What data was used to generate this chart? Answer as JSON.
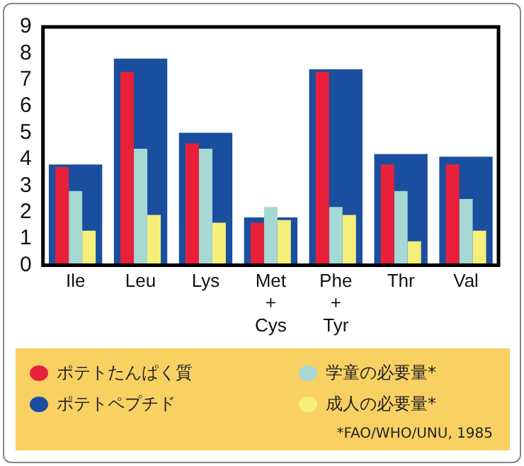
{
  "chart_data": {
    "type": "bar",
    "categories": [
      "Ile",
      "Leu",
      "Lys",
      "Met\n+\nCys",
      "Phe\n+\nTyr",
      "Thr",
      "Val"
    ],
    "series": [
      {
        "name": "ポテトペプチド",
        "color": "#1a4fa0",
        "values": [
          3.8,
          7.8,
          5.0,
          1.8,
          7.4,
          4.2,
          4.1
        ]
      },
      {
        "name": "ポテトたんぱく質",
        "color": "#e8203a",
        "values": [
          3.7,
          7.3,
          4.6,
          1.6,
          7.3,
          3.8,
          3.8
        ]
      },
      {
        "name": "学童の必要量*",
        "color": "#a6d8d4",
        "values": [
          2.8,
          4.4,
          4.4,
          2.2,
          2.2,
          2.8,
          2.5
        ]
      },
      {
        "name": "成人の必要量*",
        "color": "#f5ef7a",
        "values": [
          1.3,
          1.9,
          1.6,
          1.7,
          1.9,
          0.9,
          1.3
        ]
      }
    ],
    "ylim": [
      0,
      9
    ],
    "yticks": [
      0,
      1,
      2,
      3,
      4,
      5,
      6,
      7,
      8,
      9
    ],
    "grid": false,
    "legend": "bottom",
    "annotations": [
      "*FAO/WHO/UNU, 1985"
    ]
  }
}
